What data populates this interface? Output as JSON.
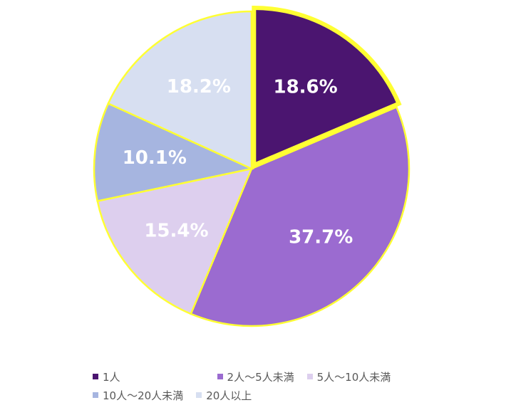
{
  "chart_data": {
    "type": "pie",
    "title": "",
    "categories": [
      "1人",
      "2人～5人未満",
      "5人～10人未満",
      "10人～20人未満",
      "20人以上"
    ],
    "values": [
      18.6,
      37.7,
      15.4,
      10.1,
      18.2
    ],
    "value_labels": [
      "18.6%",
      "37.7%",
      "15.4%",
      "10.1%",
      "18.2%"
    ],
    "colors": [
      "#4B1570",
      "#9B6BD0",
      "#DDCFEE",
      "#A6B5E0",
      "#D7DFF1"
    ],
    "label_colors": [
      "#ffffff",
      "#ffffff",
      "#ffffff",
      "#ffffff",
      "#ffffff"
    ],
    "border_color": "#FFFF33",
    "highlighted_slice": "1人",
    "start_angle": 0,
    "direction": "clockwise",
    "legend_position": "bottom"
  }
}
